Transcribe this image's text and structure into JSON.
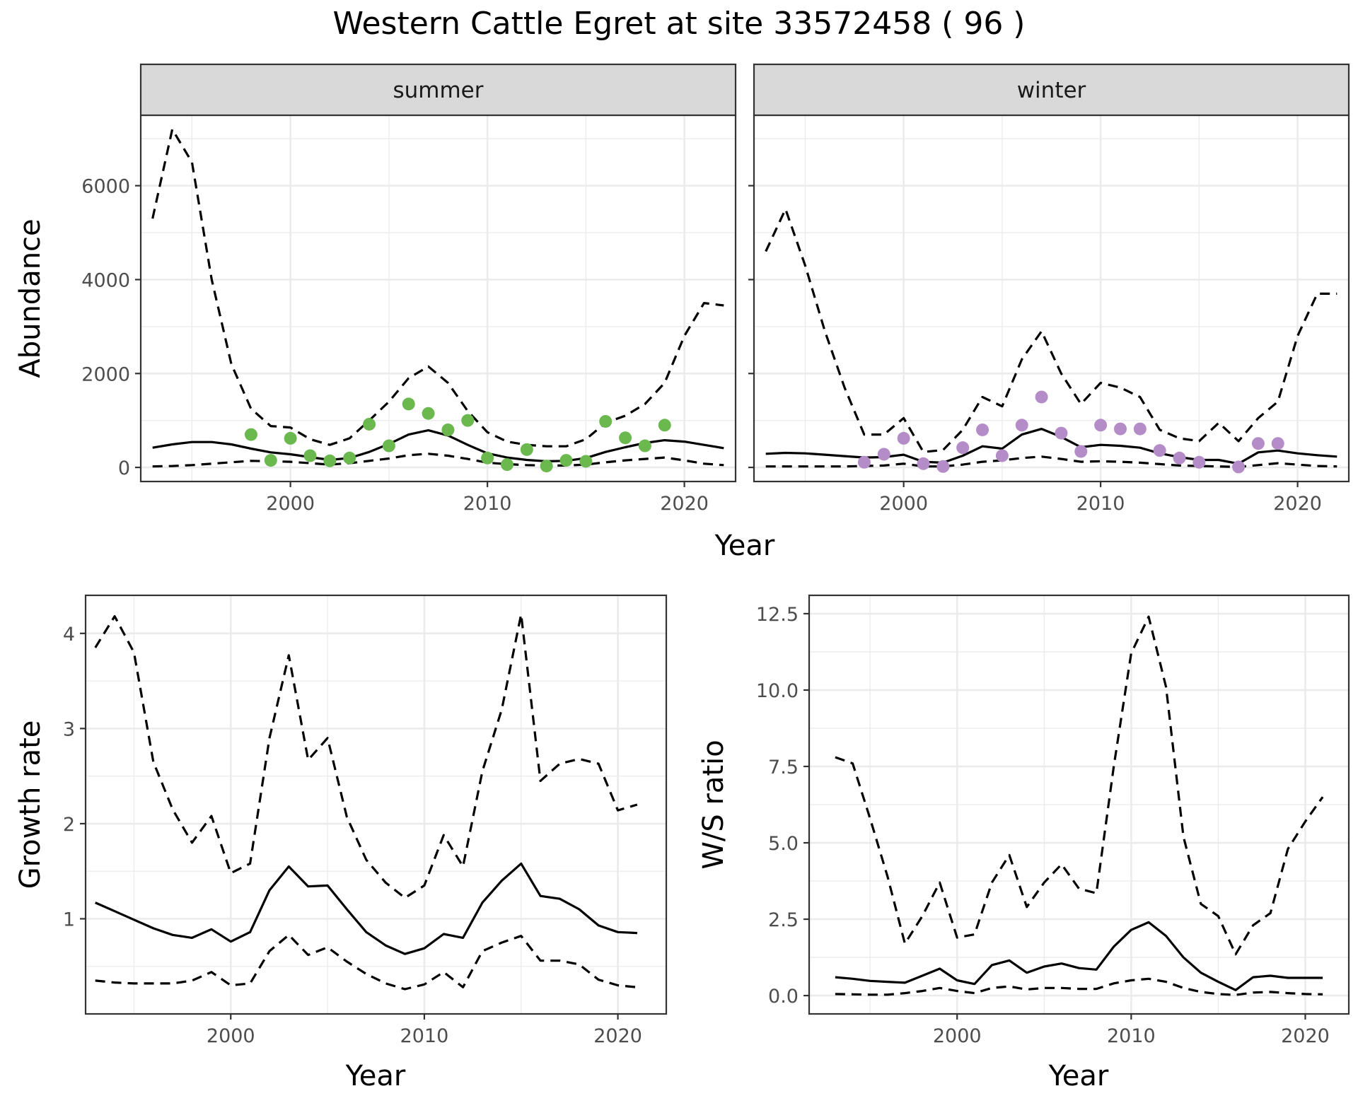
{
  "title": "Western Cattle Egret at site 33572458 ( 96 )",
  "colors": {
    "summer_points": "#6ab84e",
    "winter_points": "#b48cc8",
    "line": "#000000",
    "grid": "#ebebeb",
    "strip_bg": "#d9d9d9"
  },
  "chart_data": [
    {
      "type": "line",
      "panel": "summer",
      "strip_label": "summer",
      "xlabel": "Year",
      "ylabel": "Abundance",
      "xlim": [
        1992.4,
        2022.6
      ],
      "ylim": [
        -300,
        7500
      ],
      "xticks": [
        2000,
        2010,
        2020
      ],
      "yticks": [
        0,
        2000,
        4000,
        6000
      ],
      "x": [
        1993,
        1994,
        1995,
        1996,
        1997,
        1998,
        1999,
        2000,
        2001,
        2002,
        2003,
        2004,
        2005,
        2006,
        2007,
        2008,
        2009,
        2010,
        2011,
        2012,
        2013,
        2014,
        2015,
        2016,
        2017,
        2018,
        2019,
        2020,
        2021,
        2022
      ],
      "series": [
        {
          "role": "estimate",
          "style": "solid",
          "values": [
            420,
            490,
            540,
            540,
            490,
            400,
            320,
            280,
            220,
            160,
            200,
            330,
            500,
            700,
            790,
            680,
            480,
            300,
            210,
            160,
            130,
            140,
            200,
            330,
            430,
            520,
            580,
            550,
            480,
            410
          ]
        },
        {
          "role": "upper",
          "style": "dashed",
          "values": [
            5300,
            7200,
            6500,
            4000,
            2200,
            1250,
            880,
            850,
            600,
            480,
            620,
            1000,
            1400,
            1900,
            2150,
            1800,
            1200,
            750,
            550,
            480,
            450,
            450,
            600,
            950,
            1100,
            1350,
            1800,
            2800,
            3500,
            3450
          ]
        },
        {
          "role": "lower",
          "style": "dashed",
          "values": [
            20,
            30,
            50,
            80,
            110,
            140,
            130,
            120,
            90,
            60,
            90,
            140,
            190,
            260,
            290,
            250,
            180,
            100,
            70,
            50,
            40,
            40,
            60,
            110,
            150,
            180,
            210,
            150,
            80,
            50
          ]
        }
      ],
      "points": {
        "x": [
          1998,
          1999,
          2000,
          2001,
          2002,
          2003,
          2004,
          2005,
          2006,
          2007,
          2008,
          2009,
          2010,
          2011,
          2012,
          2013,
          2014,
          2015,
          2016,
          2017,
          2018,
          2019
        ],
        "y": [
          700,
          150,
          620,
          250,
          140,
          200,
          920,
          460,
          1350,
          1150,
          800,
          1000,
          200,
          60,
          380,
          30,
          150,
          130,
          980,
          630,
          460,
          900
        ]
      }
    },
    {
      "type": "line",
      "panel": "winter",
      "strip_label": "winter",
      "xlabel": "Year",
      "ylabel": "Abundance",
      "xlim": [
        1992.4,
        2022.6
      ],
      "ylim": [
        -300,
        7500
      ],
      "xticks": [
        2000,
        2010,
        2020
      ],
      "yticks": [
        0,
        2000,
        4000,
        6000
      ],
      "x": [
        1993,
        1994,
        1995,
        1996,
        1997,
        1998,
        1999,
        2000,
        2001,
        2002,
        2003,
        2004,
        2005,
        2006,
        2007,
        2008,
        2009,
        2010,
        2011,
        2012,
        2013,
        2014,
        2015,
        2016,
        2017,
        2018,
        2019,
        2020,
        2021,
        2022
      ],
      "series": [
        {
          "role": "estimate",
          "style": "solid",
          "values": [
            290,
            310,
            300,
            270,
            240,
            210,
            220,
            270,
            120,
            100,
            250,
            450,
            400,
            700,
            820,
            650,
            430,
            480,
            460,
            420,
            300,
            220,
            160,
            160,
            80,
            320,
            360,
            300,
            260,
            230
          ]
        },
        {
          "role": "upper",
          "style": "dashed",
          "values": [
            4600,
            5500,
            4300,
            2900,
            1700,
            700,
            700,
            1050,
            330,
            370,
            800,
            1500,
            1300,
            2300,
            2900,
            2000,
            1350,
            1800,
            1700,
            1500,
            800,
            620,
            560,
            950,
            560,
            1050,
            1400,
            2800,
            3700,
            3700
          ]
        },
        {
          "role": "lower",
          "style": "dashed",
          "values": [
            20,
            20,
            20,
            20,
            20,
            30,
            40,
            80,
            20,
            20,
            60,
            120,
            150,
            200,
            230,
            180,
            120,
            130,
            120,
            100,
            70,
            40,
            30,
            20,
            10,
            50,
            90,
            60,
            30,
            20
          ]
        }
      ],
      "points": {
        "x": [
          1998,
          1999,
          2000,
          2001,
          2002,
          2003,
          2004,
          2005,
          2006,
          2007,
          2008,
          2009,
          2010,
          2011,
          2012,
          2013,
          2014,
          2015,
          2017,
          2018,
          2019
        ],
        "y": [
          110,
          280,
          620,
          80,
          20,
          420,
          800,
          250,
          900,
          1500,
          730,
          340,
          900,
          820,
          820,
          360,
          200,
          110,
          10,
          510,
          510
        ]
      }
    },
    {
      "type": "line",
      "panel": "growth",
      "xlabel": "Year",
      "ylabel": "Growth rate",
      "xlim": [
        1992.5,
        2022.5
      ],
      "ylim": [
        0.0,
        4.4
      ],
      "xticks": [
        2000,
        2010,
        2020
      ],
      "yticks": [
        1,
        2,
        3,
        4
      ],
      "x": [
        1993,
        1994,
        1995,
        1996,
        1997,
        1998,
        1999,
        2000,
        2001,
        2002,
        2003,
        2004,
        2005,
        2006,
        2007,
        2008,
        2009,
        2010,
        2011,
        2012,
        2013,
        2014,
        2015,
        2016,
        2017,
        2018,
        2019,
        2020,
        2021
      ],
      "series": [
        {
          "role": "estimate",
          "style": "solid",
          "values": [
            1.17,
            1.08,
            0.99,
            0.9,
            0.83,
            0.8,
            0.89,
            0.76,
            0.86,
            1.3,
            1.55,
            1.34,
            1.35,
            1.1,
            0.86,
            0.72,
            0.63,
            0.69,
            0.84,
            0.8,
            1.17,
            1.4,
            1.58,
            1.24,
            1.21,
            1.1,
            0.93,
            0.86,
            0.85
          ]
        },
        {
          "role": "upper",
          "style": "dashed",
          "values": [
            3.85,
            4.18,
            3.8,
            2.65,
            2.15,
            1.8,
            2.08,
            1.48,
            1.58,
            2.9,
            3.77,
            2.67,
            2.9,
            2.07,
            1.62,
            1.38,
            1.22,
            1.35,
            1.88,
            1.55,
            2.55,
            3.2,
            4.2,
            2.45,
            2.63,
            2.68,
            2.63,
            2.14,
            2.2
          ]
        },
        {
          "role": "lower",
          "style": "dashed",
          "values": [
            0.35,
            0.33,
            0.32,
            0.32,
            0.32,
            0.35,
            0.44,
            0.3,
            0.32,
            0.66,
            0.83,
            0.62,
            0.7,
            0.55,
            0.42,
            0.32,
            0.26,
            0.31,
            0.44,
            0.28,
            0.66,
            0.75,
            0.82,
            0.56,
            0.56,
            0.52,
            0.36,
            0.3,
            0.28
          ]
        }
      ]
    },
    {
      "type": "line",
      "panel": "ratio",
      "xlabel": "Year",
      "ylabel": "W/S ratio",
      "xlim": [
        1991.5,
        2022.5
      ],
      "ylim": [
        -0.6,
        13.1
      ],
      "xticks": [
        2000,
        2010,
        2020
      ],
      "yticks": [
        0.0,
        2.5,
        5.0,
        7.5,
        10.0,
        12.5
      ],
      "ytick_labels": [
        "0.0",
        "2.5",
        "5.0",
        "7.5",
        "10.0",
        "12.5"
      ],
      "x": [
        1993,
        1994,
        1995,
        1996,
        1997,
        1998,
        1999,
        2000,
        2001,
        2002,
        2003,
        2004,
        2005,
        2006,
        2007,
        2008,
        2009,
        2010,
        2011,
        2012,
        2013,
        2014,
        2015,
        2016,
        2017,
        2018,
        2019,
        2020,
        2021
      ],
      "series": [
        {
          "role": "estimate",
          "style": "solid",
          "values": [
            0.6,
            0.55,
            0.48,
            0.45,
            0.42,
            0.65,
            0.88,
            0.5,
            0.38,
            1.0,
            1.15,
            0.75,
            0.95,
            1.05,
            0.9,
            0.85,
            1.6,
            2.15,
            2.4,
            1.95,
            1.25,
            0.75,
            0.45,
            0.18,
            0.6,
            0.65,
            0.58,
            0.58,
            0.58
          ]
        },
        {
          "role": "upper",
          "style": "dashed",
          "values": [
            7.8,
            7.6,
            5.8,
            3.9,
            1.7,
            2.6,
            3.7,
            1.9,
            2.0,
            3.7,
            4.6,
            2.9,
            3.7,
            4.3,
            3.5,
            3.35,
            7.5,
            11.2,
            12.4,
            10.1,
            5.2,
            3.0,
            2.6,
            1.35,
            2.3,
            2.7,
            4.8,
            5.7,
            6.5
          ]
        },
        {
          "role": "lower",
          "style": "dashed",
          "values": [
            0.05,
            0.04,
            0.03,
            0.03,
            0.08,
            0.15,
            0.25,
            0.15,
            0.08,
            0.25,
            0.3,
            0.2,
            0.25,
            0.25,
            0.22,
            0.22,
            0.4,
            0.5,
            0.55,
            0.45,
            0.25,
            0.12,
            0.05,
            0.02,
            0.1,
            0.12,
            0.08,
            0.05,
            0.04
          ]
        }
      ]
    }
  ]
}
